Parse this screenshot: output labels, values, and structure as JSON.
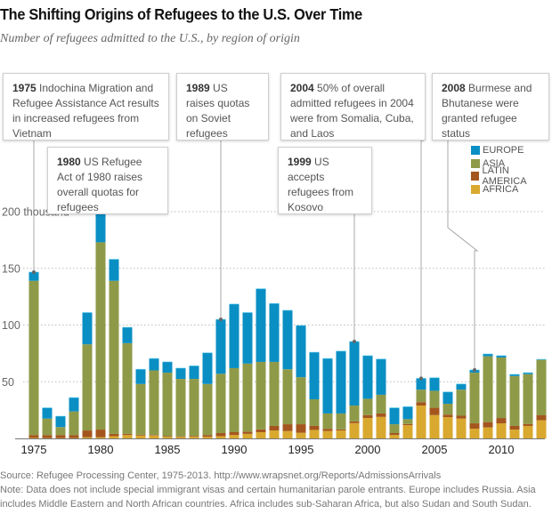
{
  "header": {
    "title": "The Shifting Origins of Refugees to the U.S. Over Time",
    "subtitle": "Number of refugees admitted to the U.S., by region of origin"
  },
  "annotations": [
    {
      "id": "1975",
      "year_label": "1975",
      "text": " Indochina Migration and Refugee Assistance Act results in increased refugees from Vietnam"
    },
    {
      "id": "1980",
      "year_label": "1980",
      "text": " US Refugee Act of 1980 raises overall quotas for refugees"
    },
    {
      "id": "1989",
      "year_label": "1989",
      "text": " US raises quotas on Soviet refugees"
    },
    {
      "id": "2004",
      "year_label": "2004",
      "text": " 50% of overall admitted refugees in 2004 were from Somalia, Cuba, and Laos"
    },
    {
      "id": "1999",
      "year_label": "1999",
      "text": " US accepts refugees from Kosovo"
    },
    {
      "id": "2008",
      "year_label": "2008",
      "text": " Burmese and Bhutanese were granted refugee status"
    }
  ],
  "footer": {
    "source": "Source: Refugee Processing Center, 1975-2013. http://www.wrapsnet.org/Reports/AdmissionsArrivals",
    "note_line1": "Note: Data does not include special immigrant visas and certain humanitarian parole entrants. Europe includes Russia. Asia",
    "note_line2": "includes Middle Eastern and North African countries. Africa includes sub-Saharan Africa, but also Sudan and South Sudan."
  },
  "colors": {
    "europe": "#0a8fc4",
    "asia": "#8f9a48",
    "latin_america": "#a4561e",
    "africa": "#d9a82e"
  },
  "chart_data": {
    "type": "bar",
    "stacked": true,
    "title": "The Shifting Origins of Refugees to the U.S. Over Time",
    "subtitle": "Number of refugees admitted to the U.S., by region of origin",
    "xlabel": "",
    "ylabel": "thousand",
    "ylim": [
      0,
      200
    ],
    "yticks": [
      50,
      100,
      150,
      200
    ],
    "ytick_labels": [
      "50",
      "100",
      "150",
      "200 thousand"
    ],
    "xtick_labels": [
      "1975",
      "1980",
      "1985",
      "1990",
      "1995",
      "2000",
      "2005",
      "2010"
    ],
    "grid": true,
    "legend_position": "top-right",
    "categories": [
      1975,
      1976,
      1977,
      1978,
      1979,
      1980,
      1981,
      1982,
      1983,
      1984,
      1985,
      1986,
      1987,
      1988,
      1989,
      1990,
      1991,
      1992,
      1993,
      1994,
      1995,
      1996,
      1997,
      1998,
      1999,
      2000,
      2001,
      2002,
      2003,
      2004,
      2005,
      2006,
      2007,
      2008,
      2009,
      2010,
      2011,
      2012,
      2013
    ],
    "series": [
      {
        "name": "AFRICA",
        "key": "africa",
        "values": [
          0.5,
          0.3,
          0.3,
          0.3,
          1,
          1,
          2,
          3,
          2.5,
          2.5,
          1.5,
          1.3,
          1.5,
          1.5,
          2,
          3,
          4,
          5.5,
          7,
          6.5,
          5,
          7.5,
          6.5,
          7,
          13.5,
          18,
          19,
          3,
          11.7,
          29,
          20.6,
          18.8,
          17.5,
          8.6,
          9.7,
          13.3,
          7.8,
          11,
          16
        ]
      },
      {
        "name": "LATIN AMERICA",
        "key": "latin_america",
        "values": [
          2.5,
          2.7,
          2.7,
          2.7,
          6,
          6.8,
          2,
          1,
          0.7,
          0.5,
          0.5,
          0.5,
          0.7,
          1.5,
          2.7,
          2.5,
          2,
          2.5,
          4,
          6,
          7.5,
          3.5,
          2,
          1,
          1.5,
          2.6,
          3,
          1.7,
          1,
          3,
          6.4,
          2.2,
          2.5,
          4.7,
          4.7,
          4.7,
          3.2,
          1.8,
          4.4
        ]
      },
      {
        "name": "ASIA",
        "key": "asia",
        "values": [
          136,
          14.5,
          7,
          20.8,
          76,
          165.2,
          135,
          80,
          44.8,
          57,
          56,
          50.7,
          50.3,
          45,
          52.3,
          56.5,
          60,
          59.5,
          56.5,
          48.5,
          41.5,
          23.5,
          13.5,
          14,
          14,
          14.4,
          16.5,
          7.8,
          4.3,
          11,
          15,
          9.6,
          23,
          44.7,
          58,
          53.4,
          44,
          43.9,
          48.9
        ]
      },
      {
        "name": "EUROPE",
        "key": "europe",
        "values": [
          7.7,
          9.5,
          9.6,
          12.2,
          28,
          34,
          19,
          14,
          13,
          10.5,
          9.5,
          9.5,
          11.5,
          27.5,
          48,
          56.5,
          45,
          64.5,
          51.5,
          52,
          45.6,
          41.5,
          48.5,
          55,
          56.5,
          38,
          31.5,
          14.5,
          11,
          10,
          11.5,
          10.4,
          5,
          2.4,
          2.1,
          1.6,
          1.5,
          1.3,
          0.5
        ]
      }
    ],
    "annotated_years": [
      1975,
      1980,
      1989,
      1999,
      2004,
      2008
    ]
  }
}
